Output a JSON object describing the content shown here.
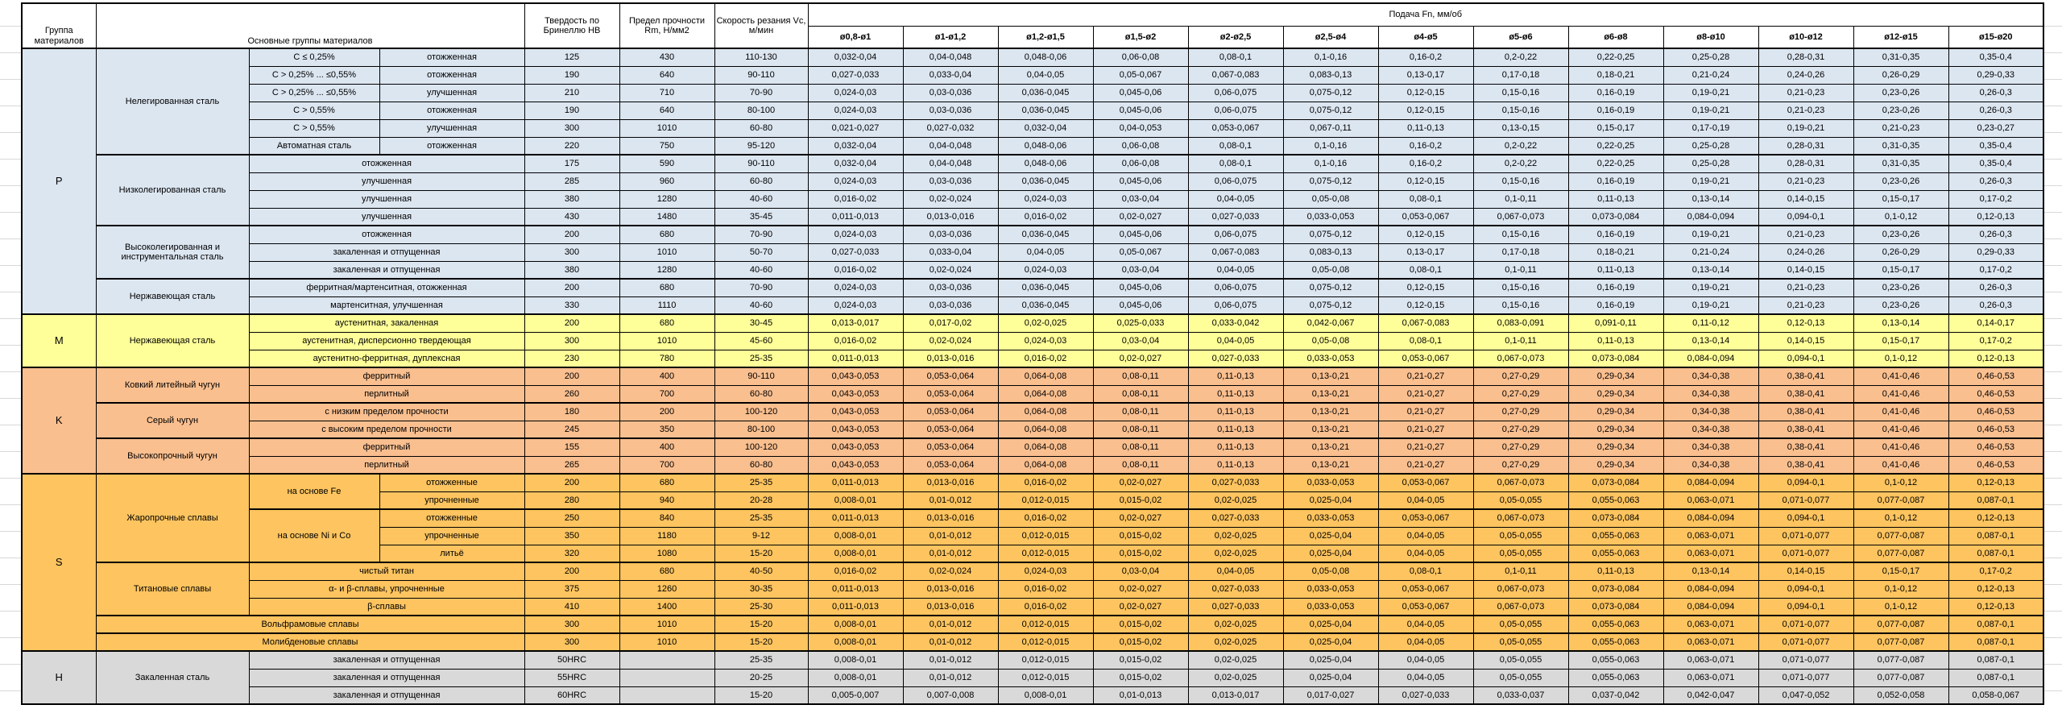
{
  "header": {
    "group_col": "Группа материалов",
    "materials_col": "Основные группы материалов",
    "hardness_col": "Твердость по Бринеллю HB",
    "strength_col": "Предел прочности Rm, Н/мм2",
    "speed_col": "Скорость резания Vc, м/мин",
    "feed_title": "Подача Fn, мм/об",
    "diameters": [
      "ø0,8-ø1",
      "ø1-ø1,2",
      "ø1,2-ø1,5",
      "ø1,5-ø2",
      "ø2-ø2,5",
      "ø2,5-ø4",
      "ø4-ø5",
      "ø5-ø6",
      "ø6-ø8",
      "ø8-ø10",
      "ø10-ø12",
      "ø12-ø15",
      "ø15-ø20"
    ]
  },
  "colors": {
    "P": "#dce6f1",
    "M": "#ffff99",
    "K": "#fabf8f",
    "S": "#fdc45f",
    "H": "#d9d9d9"
  },
  "feed_templates": {
    "A": [
      "0,032-0,04",
      "0,04-0,048",
      "0,048-0,06",
      "0,06-0,08",
      "0,08-0,1",
      "0,1-0,16",
      "0,16-0,2",
      "0,2-0,22",
      "0,22-0,25",
      "0,25-0,28",
      "0,28-0,31",
      "0,31-0,35",
      "0,35-0,4"
    ],
    "B": [
      "0,027-0,033",
      "0,033-0,04",
      "0,04-0,05",
      "0,05-0,067",
      "0,067-0,083",
      "0,083-0,13",
      "0,13-0,17",
      "0,17-0,18",
      "0,18-0,21",
      "0,21-0,24",
      "0,24-0,26",
      "0,26-0,29",
      "0,29-0,33"
    ],
    "C": [
      "0,024-0,03",
      "0,03-0,036",
      "0,036-0,045",
      "0,045-0,06",
      "0,06-0,075",
      "0,075-0,12",
      "0,12-0,15",
      "0,15-0,16",
      "0,16-0,19",
      "0,19-0,21",
      "0,21-0,23",
      "0,23-0,26",
      "0,26-0,3"
    ],
    "D": [
      "0,021-0,027",
      "0,027-0,032",
      "0,032-0,04",
      "0,04-0,053",
      "0,053-0,067",
      "0,067-0,11",
      "0,11-0,13",
      "0,13-0,15",
      "0,15-0,17",
      "0,17-0,19",
      "0,19-0,21",
      "0,21-0,23",
      "0,23-0,27"
    ],
    "E": [
      "0,016-0,02",
      "0,02-0,024",
      "0,024-0,03",
      "0,03-0,04",
      "0,04-0,05",
      "0,05-0,08",
      "0,08-0,1",
      "0,1-0,11",
      "0,11-0,13",
      "0,13-0,14",
      "0,14-0,15",
      "0,15-0,17",
      "0,17-0,2"
    ],
    "F": [
      "0,011-0,013",
      "0,013-0,016",
      "0,016-0,02",
      "0,02-0,027",
      "0,027-0,033",
      "0,033-0,053",
      "0,053-0,067",
      "0,067-0,073",
      "0,073-0,084",
      "0,084-0,094",
      "0,094-0,1",
      "0,1-0,12",
      "0,12-0,13"
    ],
    "G": [
      "0,013-0,017",
      "0,017-0,02",
      "0,02-0,025",
      "0,025-0,033",
      "0,033-0,042",
      "0,042-0,067",
      "0,067-0,083",
      "0,083-0,091",
      "0,091-0,11",
      "0,11-0,12",
      "0,12-0,13",
      "0,13-0,14",
      "0,14-0,17"
    ],
    "K": [
      "0,043-0,053",
      "0,053-0,064",
      "0,064-0,08",
      "0,08-0,11",
      "0,11-0,13",
      "0,13-0,21",
      "0,21-0,27",
      "0,27-0,29",
      "0,29-0,34",
      "0,34-0,38",
      "0,38-0,41",
      "0,41-0,46",
      "0,46-0,53"
    ],
    "H8": [
      "0,008-0,01",
      "0,01-0,012",
      "0,012-0,015",
      "0,015-0,02",
      "0,02-0,025",
      "0,025-0,04",
      "0,04-0,05",
      "0,05-0,055",
      "0,055-0,063",
      "0,063-0,071",
      "0,071-0,077",
      "0,077-0,087",
      "0,087-0,1"
    ],
    "L": [
      "0,005-0,007",
      "0,007-0,008",
      "0,008-0,01",
      "0,01-0,013",
      "0,013-0,017",
      "0,017-0,027",
      "0,027-0,033",
      "0,033-0,037",
      "0,037-0,042",
      "0,042-0,047",
      "0,047-0,052",
      "0,052-0,058",
      "0,058-0,067"
    ]
  },
  "groups": [
    {
      "letter": "P",
      "rows": [
        {
          "left": [
            {
              "t": "Нелегированная сталь",
              "col": "sub",
              "rs": 6
            },
            {
              "t": "C ≤ 0,25%",
              "col": "d1"
            },
            {
              "t": "отожженная",
              "col": "d2"
            }
          ],
          "hb": "125",
          "rm": "430",
          "vc": "110-130",
          "feed": "A"
        },
        {
          "left": [
            {
              "t": "C > 0,25% ... ≤0,55%",
              "col": "d1"
            },
            {
              "t": "отожженная",
              "col": "d2"
            }
          ],
          "hb": "190",
          "rm": "640",
          "vc": "90-110",
          "feed": "B"
        },
        {
          "left": [
            {
              "t": "C > 0,25% ... ≤0,55%",
              "col": "d1"
            },
            {
              "t": "улучшенная",
              "col": "d2"
            }
          ],
          "hb": "210",
          "rm": "710",
          "vc": "70-90",
          "feed": "C"
        },
        {
          "left": [
            {
              "t": "C > 0,55%",
              "col": "d1"
            },
            {
              "t": "отожженная",
              "col": "d2"
            }
          ],
          "hb": "190",
          "rm": "640",
          "vc": "80-100",
          "feed": "C"
        },
        {
          "left": [
            {
              "t": "C > 0,55%",
              "col": "d1"
            },
            {
              "t": "улучшенная",
              "col": "d2"
            }
          ],
          "hb": "300",
          "rm": "1010",
          "vc": "60-80",
          "feed": "D"
        },
        {
          "left": [
            {
              "t": "Автоматная сталь",
              "col": "d1"
            },
            {
              "t": "отожженная",
              "col": "d2"
            }
          ],
          "hb": "220",
          "rm": "750",
          "vc": "95-120",
          "feed": "A"
        },
        {
          "left": [
            {
              "t": "Низколегированная сталь",
              "col": "sub",
              "rs": 4
            },
            {
              "t": "отожженная",
              "col": "d12"
            }
          ],
          "hb": "175",
          "rm": "590",
          "vc": "90-110",
          "feed": "A"
        },
        {
          "left": [
            {
              "t": "улучшенная",
              "col": "d12"
            }
          ],
          "hb": "285",
          "rm": "960",
          "vc": "60-80",
          "feed": "C"
        },
        {
          "left": [
            {
              "t": "улучшенная",
              "col": "d12"
            }
          ],
          "hb": "380",
          "rm": "1280",
          "vc": "40-60",
          "feed": "E"
        },
        {
          "left": [
            {
              "t": "улучшенная",
              "col": "d12"
            }
          ],
          "hb": "430",
          "rm": "1480",
          "vc": "35-45",
          "feed": "F"
        },
        {
          "left": [
            {
              "t": "Высоколегированная и инструментальная сталь",
              "col": "sub",
              "rs": 3
            },
            {
              "t": "отожженная",
              "col": "d12"
            }
          ],
          "hb": "200",
          "rm": "680",
          "vc": "70-90",
          "feed": "C"
        },
        {
          "left": [
            {
              "t": "закаленная и отпущенная",
              "col": "d12"
            }
          ],
          "hb": "300",
          "rm": "1010",
          "vc": "50-70",
          "feed": "B"
        },
        {
          "left": [
            {
              "t": "закаленная и отпущенная",
              "col": "d12"
            }
          ],
          "hb": "380",
          "rm": "1280",
          "vc": "40-60",
          "feed": "E"
        },
        {
          "left": [
            {
              "t": "Нержавеющая сталь",
              "col": "sub",
              "rs": 2
            },
            {
              "t": "ферритная/мартенситная, отожженная",
              "col": "d12"
            }
          ],
          "hb": "200",
          "rm": "680",
          "vc": "70-90",
          "feed": "C"
        },
        {
          "left": [
            {
              "t": "мартенситная, улучшенная",
              "col": "d12"
            }
          ],
          "hb": "330",
          "rm": "1110",
          "vc": "40-60",
          "feed": "C"
        }
      ]
    },
    {
      "letter": "M",
      "rows": [
        {
          "left": [
            {
              "t": "Нержавеющая сталь",
              "col": "sub",
              "rs": 3
            },
            {
              "t": "аустенитная, закаленная",
              "col": "d12"
            }
          ],
          "hb": "200",
          "rm": "680",
          "vc": "30-45",
          "feed": "G"
        },
        {
          "left": [
            {
              "t": "аустенитная, дисперсионно твердеющая",
              "col": "d12"
            }
          ],
          "hb": "300",
          "rm": "1010",
          "vc": "45-60",
          "feed": "E"
        },
        {
          "left": [
            {
              "t": "аустенитно-ферритная, дуплексная",
              "col": "d12"
            }
          ],
          "hb": "230",
          "rm": "780",
          "vc": "25-35",
          "feed": "F"
        }
      ]
    },
    {
      "letter": "K",
      "rows": [
        {
          "left": [
            {
              "t": "Ковкий литейный чугун",
              "col": "sub",
              "rs": 2
            },
            {
              "t": "ферритный",
              "col": "d12"
            }
          ],
          "hb": "200",
          "rm": "400",
          "vc": "90-110",
          "feed": "K"
        },
        {
          "left": [
            {
              "t": "перлитный",
              "col": "d12"
            }
          ],
          "hb": "260",
          "rm": "700",
          "vc": "60-80",
          "feed": "K"
        },
        {
          "left": [
            {
              "t": "Серый чугун",
              "col": "sub",
              "rs": 2
            },
            {
              "t": "с низким пределом прочности",
              "col": "d12"
            }
          ],
          "hb": "180",
          "rm": "200",
          "vc": "100-120",
          "feed": "K"
        },
        {
          "left": [
            {
              "t": "с высоким пределом прочности",
              "col": "d12"
            }
          ],
          "hb": "245",
          "rm": "350",
          "vc": "80-100",
          "feed": "K"
        },
        {
          "left": [
            {
              "t": "Высокопрочный чугун",
              "col": "sub",
              "rs": 2
            },
            {
              "t": "ферритный",
              "col": "d12"
            }
          ],
          "hb": "155",
          "rm": "400",
          "vc": "100-120",
          "feed": "K"
        },
        {
          "left": [
            {
              "t": "перлитный",
              "col": "d12"
            }
          ],
          "hb": "265",
          "rm": "700",
          "vc": "60-80",
          "feed": "K"
        }
      ]
    },
    {
      "letter": "S",
      "rows": [
        {
          "left": [
            {
              "t": "Жаропрочные сплавы",
              "col": "sub",
              "rs": 5
            },
            {
              "t": "на основе Fe",
              "col": "d1",
              "rs": 2
            },
            {
              "t": "отожженные",
              "col": "d2"
            }
          ],
          "hb": "200",
          "rm": "680",
          "vc": "25-35",
          "feed": "F"
        },
        {
          "left": [
            {
              "t": "упрочненные",
              "col": "d2"
            }
          ],
          "hb": "280",
          "rm": "940",
          "vc": "20-28",
          "feed": "H8"
        },
        {
          "left": [
            {
              "t": "на основе Ni и Co",
              "col": "d1",
              "rs": 3
            },
            {
              "t": "отожженные",
              "col": "d2"
            }
          ],
          "hb": "250",
          "rm": "840",
          "vc": "25-35",
          "feed": "F"
        },
        {
          "left": [
            {
              "t": "упрочненные",
              "col": "d2"
            }
          ],
          "hb": "350",
          "rm": "1180",
          "vc": "9-12",
          "feed": "H8"
        },
        {
          "left": [
            {
              "t": "литьё",
              "col": "d2"
            }
          ],
          "hb": "320",
          "rm": "1080",
          "vc": "15-20",
          "feed": "H8"
        },
        {
          "left": [
            {
              "t": "Титановые сплавы",
              "col": "sub",
              "rs": 3
            },
            {
              "t": "чистый титан",
              "col": "d12"
            }
          ],
          "hb": "200",
          "rm": "680",
          "vc": "40-50",
          "feed": "E"
        },
        {
          "left": [
            {
              "t": "α- и β-сплавы, упрочненные",
              "col": "d12"
            }
          ],
          "hb": "375",
          "rm": "1260",
          "vc": "30-35",
          "feed": "F"
        },
        {
          "left": [
            {
              "t": "β-сплавы",
              "col": "d12"
            }
          ],
          "hb": "410",
          "rm": "1400",
          "vc": "25-30",
          "feed": "F"
        },
        {
          "left": [
            {
              "t": "Вольфрамовые сплавы",
              "col": "sd12"
            }
          ],
          "hb": "300",
          "rm": "1010",
          "vc": "15-20",
          "feed": "H8"
        },
        {
          "left": [
            {
              "t": "Молибденовые сплавы",
              "col": "sd12"
            }
          ],
          "hb": "300",
          "rm": "1010",
          "vc": "15-20",
          "feed": "H8"
        }
      ]
    },
    {
      "letter": "H",
      "rows": [
        {
          "left": [
            {
              "t": "Закаленная сталь",
              "col": "sub",
              "rs": 3
            },
            {
              "t": "закаленная и отпущенная",
              "col": "d12"
            }
          ],
          "hb": "50HRC",
          "rm": "",
          "vc": "25-35",
          "feed": "H8"
        },
        {
          "left": [
            {
              "t": "закаленная и отпущенная",
              "col": "d12"
            }
          ],
          "hb": "55HRC",
          "rm": "",
          "vc": "20-25",
          "feed": "H8"
        },
        {
          "left": [
            {
              "t": "закаленная и отпущенная",
              "col": "d12"
            }
          ],
          "hb": "60HRC",
          "rm": "",
          "vc": "15-20",
          "feed": "L"
        }
      ]
    }
  ]
}
